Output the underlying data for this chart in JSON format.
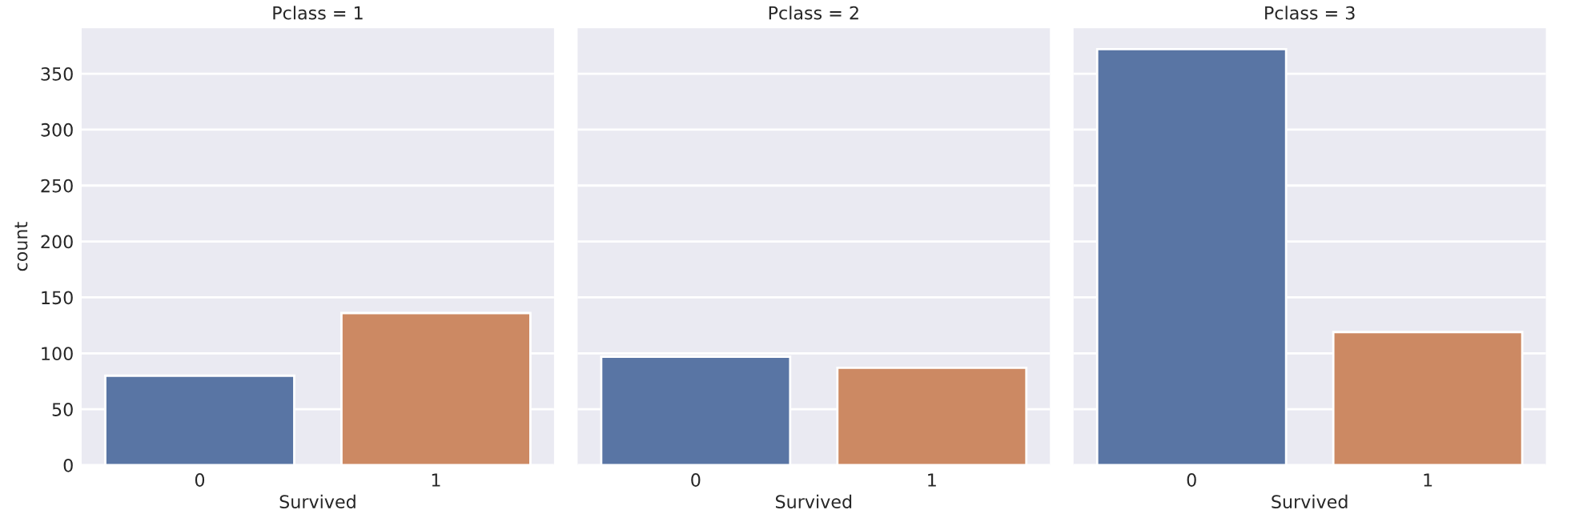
{
  "chart_data": [
    {
      "type": "bar",
      "title": "Pclass = 1",
      "xlabel": "Survived",
      "ylabel": "count",
      "categories": [
        "0",
        "1"
      ],
      "values": [
        80,
        136
      ],
      "colors": [
        "#5975a4",
        "#cc8963"
      ],
      "ylim": [
        0,
        390.6
      ],
      "yticks": [
        0,
        50,
        100,
        150,
        200,
        250,
        300,
        350
      ],
      "grid": "y"
    },
    {
      "type": "bar",
      "title": "Pclass = 2",
      "xlabel": "Survived",
      "categories": [
        "0",
        "1"
      ],
      "values": [
        97,
        87
      ],
      "colors": [
        "#5975a4",
        "#cc8963"
      ],
      "ylim": [
        0,
        390.6
      ],
      "yticks": [
        0,
        50,
        100,
        150,
        200,
        250,
        300,
        350
      ],
      "grid": "y",
      "tick_labels": "x"
    },
    {
      "type": "bar",
      "title": "Pclass = 3",
      "xlabel": "Survived",
      "categories": [
        "0",
        "1"
      ],
      "values": [
        372,
        119
      ],
      "colors": [
        "#5975a4",
        "#cc8963"
      ],
      "ylim": [
        0,
        390.6
      ],
      "yticks": [
        0,
        50,
        100,
        150,
        200,
        250,
        300,
        350
      ],
      "grid": "y",
      "tick_labels": "x"
    }
  ]
}
